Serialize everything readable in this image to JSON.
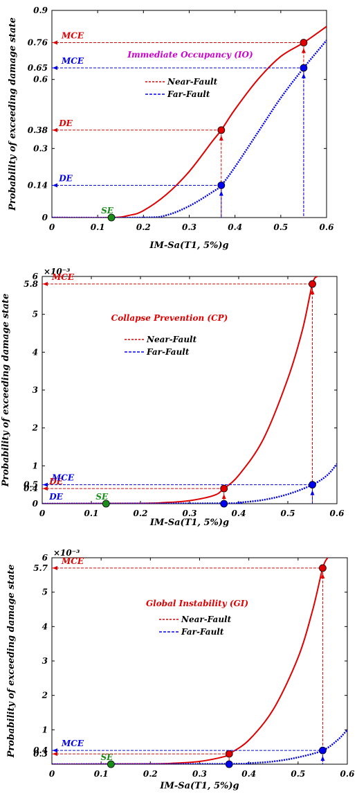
{
  "chart_data": [
    {
      "type": "line",
      "title": "Immediate Occupancy (IO)",
      "title_color": "#cc00cc",
      "xlabel": "IM-Sa(T1, 5%)g",
      "ylabel": "Probability of exceeding damage state",
      "xlim": [
        0,
        0.6
      ],
      "ylim": [
        0,
        0.9
      ],
      "xticks": [
        "0",
        "0.1",
        "0.2",
        "0.3",
        "0.4",
        "0.5",
        "0.6"
      ],
      "yticks": [
        "0",
        "0.3",
        "0.6",
        "0.9"
      ],
      "exponent_label": "",
      "legend_position": "center",
      "series": [
        {
          "name": "Near-Fault",
          "color": "#e00000",
          "dashed": false,
          "x": [
            0,
            0.13,
            0.17,
            0.2,
            0.25,
            0.3,
            0.35,
            0.37,
            0.4,
            0.45,
            0.5,
            0.55,
            0.6
          ],
          "y": [
            0,
            0,
            0.01,
            0.03,
            0.1,
            0.2,
            0.33,
            0.38,
            0.47,
            0.6,
            0.7,
            0.76,
            0.83
          ]
        },
        {
          "name": "Far-Fault",
          "color": "#0000ee",
          "dashed": true,
          "x": [
            0,
            0.2,
            0.25,
            0.3,
            0.35,
            0.37,
            0.4,
            0.45,
            0.5,
            0.55,
            0.6
          ],
          "y": [
            0,
            0,
            0.01,
            0.05,
            0.11,
            0.14,
            0.22,
            0.37,
            0.52,
            0.65,
            0.77
          ]
        }
      ],
      "points": [
        {
          "label": "SE",
          "x": 0.13,
          "y": 0,
          "color": "#1a8c1a",
          "label_color": "#1a8c1a",
          "guide": false
        },
        {
          "label": "DE",
          "x": 0.37,
          "y": 0.38,
          "color": "#e00000",
          "label_color": "#e00000",
          "value_label": "0.38",
          "guide": true
        },
        {
          "label": "MCE",
          "x": 0.55,
          "y": 0.76,
          "color": "#e00000",
          "label_color": "#e00000",
          "value_label": "0.76",
          "guide": true
        },
        {
          "label": "DE",
          "x": 0.37,
          "y": 0.14,
          "color": "#0000ee",
          "label_color": "#0000ee",
          "value_label": "0.14",
          "guide": true
        },
        {
          "label": "MCE",
          "x": 0.55,
          "y": 0.65,
          "color": "#0000ee",
          "label_color": "#0000ee",
          "value_label": "0.65",
          "guide": true
        }
      ]
    },
    {
      "type": "line",
      "title": "Collapse Prevention (CP)",
      "title_color": "#e00000",
      "xlabel": "IM-Sa(T1, 5%)g",
      "ylabel": "Probability of exceeding damage state",
      "xlim": [
        0,
        0.6
      ],
      "ylim": [
        0,
        6
      ],
      "xticks": [
        "0",
        "0.1",
        "0.2",
        "0.3",
        "0.4",
        "0.5",
        "0.6"
      ],
      "yticks": [
        "0",
        "1",
        "2",
        "3",
        "4",
        "5",
        "6"
      ],
      "exponent_label": "×10⁻³",
      "legend_position": "center",
      "series": [
        {
          "name": "Near-Fault",
          "color": "#e00000",
          "dashed": false,
          "x": [
            0,
            0.2,
            0.25,
            0.3,
            0.35,
            0.37,
            0.4,
            0.45,
            0.5,
            0.53,
            0.55,
            0.56
          ],
          "y": [
            0,
            0.01,
            0.03,
            0.08,
            0.22,
            0.4,
            0.75,
            1.7,
            3.3,
            4.6,
            5.8,
            6.0
          ]
        },
        {
          "name": "Far-Fault",
          "color": "#0000ee",
          "dashed": true,
          "x": [
            0,
            0.37,
            0.4,
            0.45,
            0.5,
            0.55,
            0.58,
            0.6
          ],
          "y": [
            0,
            0.01,
            0.03,
            0.1,
            0.25,
            0.5,
            0.75,
            1.05
          ]
        }
      ],
      "points": [
        {
          "label": "SE",
          "x": 0.13,
          "y": 0,
          "color": "#1a8c1a",
          "label_color": "#1a8c1a",
          "guide": false
        },
        {
          "label": "DE",
          "x": 0.37,
          "y": 0.4,
          "color": "#e00000",
          "label_color": "#e00000",
          "value_label": "0.4",
          "guide": true
        },
        {
          "label": "MCE",
          "x": 0.55,
          "y": 5.8,
          "color": "#e00000",
          "label_color": "#e00000",
          "value_label": "5.8",
          "guide": true
        },
        {
          "label": "DE",
          "x": 0.37,
          "y": 0,
          "color": "#0000ee",
          "label_color": "#0000ee",
          "guide": false
        },
        {
          "label": "MCE",
          "x": 0.55,
          "y": 0.5,
          "color": "#0000ee",
          "label_color": "#0000ee",
          "value_label": "0.5",
          "guide": true
        }
      ]
    },
    {
      "type": "line",
      "title": "Global Instability (GI)",
      "title_color": "#e00000",
      "xlabel": "IM-Sa(T1, 5%)g",
      "ylabel": "Probability of exceeding damage state",
      "xlim": [
        0,
        0.6
      ],
      "ylim": [
        0,
        6
      ],
      "xticks": [
        "0",
        "0.1",
        "0.2",
        "0.3",
        "0.4",
        "0.5",
        "0.6"
      ],
      "yticks": [
        "1",
        "2",
        "3",
        "4",
        "5",
        "6"
      ],
      "exponent_label": "×10⁻³",
      "legend_position": "center",
      "series": [
        {
          "name": "Near-Fault",
          "color": "#e00000",
          "dashed": false,
          "x": [
            0,
            0.2,
            0.25,
            0.3,
            0.35,
            0.36,
            0.4,
            0.45,
            0.5,
            0.53,
            0.55,
            0.56
          ],
          "y": [
            0,
            0.01,
            0.03,
            0.08,
            0.22,
            0.3,
            0.7,
            1.6,
            3.1,
            4.5,
            5.7,
            6.0
          ]
        },
        {
          "name": "Far-Fault",
          "color": "#0000ee",
          "dashed": true,
          "x": [
            0,
            0.36,
            0.4,
            0.45,
            0.5,
            0.55,
            0.58,
            0.6
          ],
          "y": [
            0,
            0.01,
            0.03,
            0.08,
            0.2,
            0.4,
            0.7,
            1.0
          ]
        }
      ],
      "points": [
        {
          "label": "SE",
          "x": 0.12,
          "y": 0,
          "color": "#1a8c1a",
          "label_color": "#1a8c1a",
          "guide": false
        },
        {
          "label": "",
          "x": 0.36,
          "y": 0.3,
          "color": "#e00000",
          "label_color": "#e00000",
          "value_label": "0.3",
          "guide": true
        },
        {
          "label": "MCE",
          "x": 0.55,
          "y": 5.7,
          "color": "#e00000",
          "label_color": "#e00000",
          "value_label": "5.7",
          "guide": true
        },
        {
          "label": "",
          "x": 0.36,
          "y": 0,
          "color": "#0000ee",
          "label_color": "#0000ee",
          "guide": false
        },
        {
          "label": "MCE",
          "x": 0.55,
          "y": 0.4,
          "color": "#0000ee",
          "label_color": "#0000ee",
          "value_label": "0.4",
          "guide": true
        }
      ]
    }
  ]
}
